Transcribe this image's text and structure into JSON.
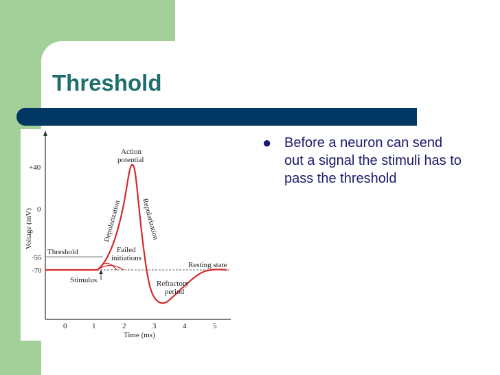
{
  "slide": {
    "title": "Threshold",
    "bullets": [
      "Before a neuron can send out a signal the stimuli has to pass the threshold"
    ]
  },
  "figure": {
    "ylabel": "Voltage (mV)",
    "xlabel": "Time (ms)",
    "yticks": [
      "+40",
      "0",
      "-55",
      "-70"
    ],
    "xticks": [
      "0",
      "1",
      "2",
      "3",
      "4",
      "5"
    ],
    "labels": {
      "action_potential_1": "Action",
      "action_potential_2": "potential",
      "depolarization": "Depolarization",
      "repolarization": "Repolarization",
      "threshold": "Threshold",
      "failed_1": "Failed",
      "failed_2": "initiations",
      "resting": "Resting state",
      "stimulus": "Stimulus",
      "refractory_1": "Refractory",
      "refractory_2": "period"
    },
    "colors": {
      "trace": "#d42a2a",
      "axis": "#333333"
    }
  }
}
